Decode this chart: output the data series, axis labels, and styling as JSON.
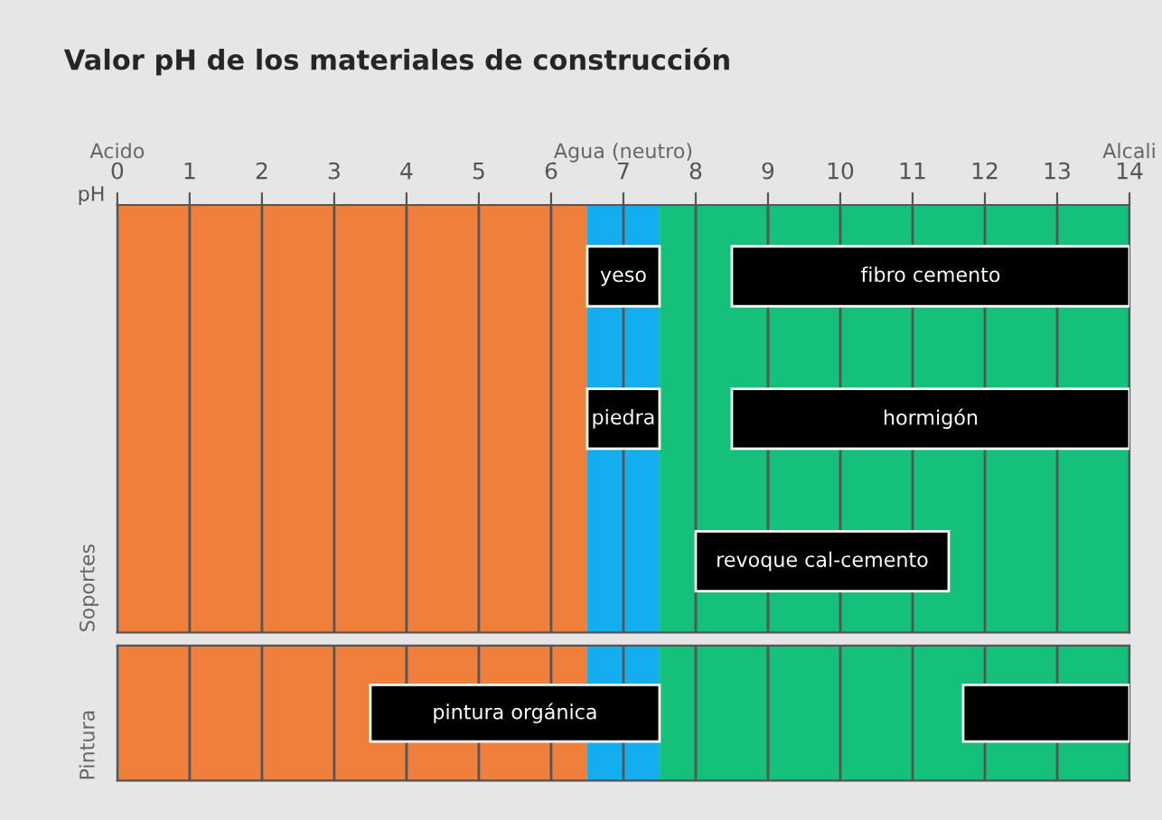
{
  "chart_data": [
    {
      "type": "bar",
      "orientation": "horizontal",
      "title": "Valor pH de los materiales de construcción",
      "xlabel": "pH",
      "ylabel": "Soportes",
      "annotations": [
        "Acido",
        "Agua (neutro)",
        "Alcali"
      ],
      "categories": [
        null,
        null,
        null
      ],
      "series": [
        {
          "color": "#000000",
          "base": [
            6.5,
            6.5,
            8
          ],
          "values": [
            1,
            1,
            3.5
          ],
          "value_labels": [
            "yeso",
            "piedra",
            "revoque cal-cemento"
          ]
        },
        {
          "color": "#000000",
          "base": [
            8.5,
            8.5,
            null
          ],
          "values": [
            5.5,
            5.5,
            null
          ],
          "value_labels": [
            "fibro cemento",
            "hormigón",
            null
          ]
        }
      ],
      "bands": [
        {
          "axis": "x",
          "from": 0,
          "to": 6.5,
          "color": "#f07f3c"
        },
        {
          "axis": "x",
          "from": 6.5,
          "to": 7.5,
          "color": "#14aef0"
        },
        {
          "axis": "x",
          "from": 7.5,
          "to": 14,
          "color": "#14c07a"
        }
      ],
      "xlim": [
        0,
        14
      ],
      "xticks": [
        0,
        1,
        2,
        3,
        4,
        5,
        6,
        7,
        8,
        9,
        10,
        11,
        12,
        13,
        14
      ],
      "grid": "x",
      "tick_labels": "x"
    },
    {
      "type": "bar",
      "orientation": "horizontal",
      "ylabel": "Pintura",
      "categories": [
        null
      ],
      "series": [
        {
          "color": "#000000",
          "base": [
            3.5
          ],
          "values": [
            4
          ],
          "value_labels": [
            "pintura orgánica"
          ]
        },
        {
          "color": "#000000",
          "base": [
            11.7
          ],
          "values": [
            2.3
          ],
          "value_labels": [
            null
          ]
        }
      ],
      "bands": [
        {
          "axis": "x",
          "from": 0,
          "to": 6.5,
          "color": "#f07f3c"
        },
        {
          "axis": "x",
          "from": 6.5,
          "to": 7.5,
          "color": "#14aef0"
        },
        {
          "axis": "x",
          "from": 7.5,
          "to": 14,
          "color": "#14c07a"
        }
      ],
      "xlim": [
        0,
        14
      ],
      "xticks": [
        0,
        1,
        2,
        3,
        4,
        5,
        6,
        7,
        8,
        9,
        10,
        11,
        12,
        13,
        14
      ],
      "grid": "x",
      "tick_labels": false
    }
  ]
}
